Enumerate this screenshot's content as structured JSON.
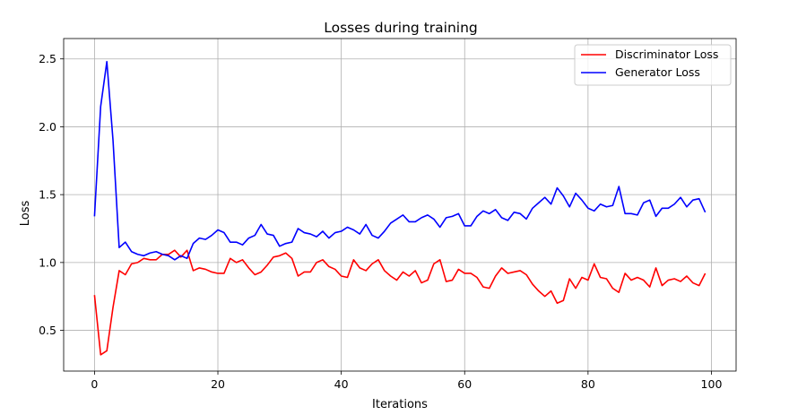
{
  "chart_data": {
    "type": "line",
    "title": "Losses during training",
    "xlabel": "Iterations",
    "ylabel": "Loss",
    "xlim": [
      -5,
      104
    ],
    "ylim": [
      0.2,
      2.65
    ],
    "xticks": [
      0,
      20,
      40,
      60,
      80,
      100
    ],
    "yticks": [
      0.5,
      1.0,
      1.5,
      2.0,
      2.5
    ],
    "xtick_labels": [
      "0",
      "20",
      "40",
      "60",
      "80",
      "100"
    ],
    "ytick_labels": [
      "0.5",
      "1.0",
      "1.5",
      "2.0",
      "2.5"
    ],
    "grid": true,
    "legend_position": "top-right",
    "series": [
      {
        "name": "Discriminator Loss",
        "color": "#ff0000",
        "values": [
          0.76,
          0.32,
          0.35,
          0.67,
          0.94,
          0.91,
          0.99,
          1.0,
          1.03,
          1.02,
          1.02,
          1.06,
          1.06,
          1.09,
          1.04,
          1.09,
          0.94,
          0.96,
          0.95,
          0.93,
          0.92,
          0.92,
          1.03,
          1.0,
          1.02,
          0.96,
          0.91,
          0.93,
          0.98,
          1.04,
          1.05,
          1.07,
          1.03,
          0.9,
          0.93,
          0.93,
          1.0,
          1.02,
          0.97,
          0.95,
          0.9,
          0.89,
          1.02,
          0.96,
          0.94,
          0.99,
          1.02,
          0.94,
          0.9,
          0.87,
          0.93,
          0.9,
          0.94,
          0.85,
          0.87,
          0.99,
          1.02,
          0.86,
          0.87,
          0.95,
          0.92,
          0.92,
          0.89,
          0.82,
          0.81,
          0.9,
          0.96,
          0.92,
          0.93,
          0.94,
          0.91,
          0.84,
          0.79,
          0.75,
          0.79,
          0.7,
          0.72,
          0.88,
          0.81,
          0.89,
          0.87,
          0.99,
          0.89,
          0.88,
          0.81,
          0.78,
          0.92,
          0.87,
          0.89,
          0.87,
          0.82,
          0.96,
          0.83,
          0.87,
          0.88,
          0.86,
          0.9,
          0.85,
          0.83,
          0.92
        ]
      },
      {
        "name": "Generator Loss",
        "color": "#0000ff",
        "values": [
          1.34,
          2.15,
          2.48,
          1.9,
          1.11,
          1.15,
          1.08,
          1.06,
          1.05,
          1.07,
          1.08,
          1.06,
          1.05,
          1.02,
          1.05,
          1.03,
          1.14,
          1.18,
          1.17,
          1.2,
          1.24,
          1.22,
          1.15,
          1.15,
          1.13,
          1.18,
          1.2,
          1.28,
          1.21,
          1.2,
          1.12,
          1.14,
          1.15,
          1.25,
          1.22,
          1.21,
          1.19,
          1.23,
          1.18,
          1.22,
          1.23,
          1.26,
          1.24,
          1.21,
          1.28,
          1.2,
          1.18,
          1.23,
          1.29,
          1.32,
          1.35,
          1.3,
          1.3,
          1.33,
          1.35,
          1.32,
          1.26,
          1.33,
          1.34,
          1.36,
          1.27,
          1.27,
          1.34,
          1.38,
          1.36,
          1.39,
          1.33,
          1.31,
          1.37,
          1.36,
          1.32,
          1.4,
          1.44,
          1.48,
          1.43,
          1.55,
          1.49,
          1.41,
          1.51,
          1.46,
          1.4,
          1.38,
          1.43,
          1.41,
          1.42,
          1.56,
          1.36,
          1.36,
          1.35,
          1.44,
          1.46,
          1.34,
          1.4,
          1.4,
          1.43,
          1.48,
          1.41,
          1.46,
          1.47,
          1.37
        ]
      }
    ]
  }
}
